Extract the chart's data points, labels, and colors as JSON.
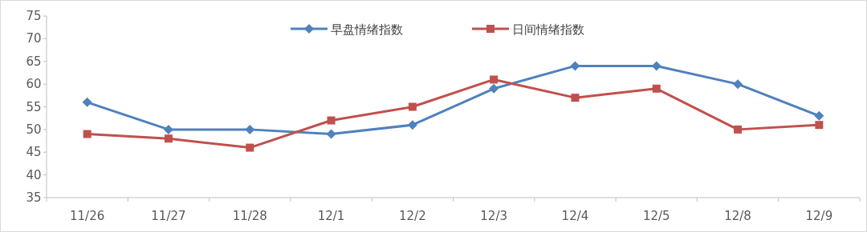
{
  "chart_data": {
    "type": "line",
    "categories": [
      "11/26",
      "11/27",
      "11/28",
      "12/1",
      "12/2",
      "12/3",
      "12/4",
      "12/5",
      "12/8",
      "12/9"
    ],
    "series": [
      {
        "name": "早盘情绪指数",
        "color": "#4f81bd",
        "marker": "diamond",
        "values": [
          56,
          50,
          50,
          49,
          51,
          59,
          64,
          64,
          60,
          53
        ]
      },
      {
        "name": "日间情绪指数",
        "color": "#c0504d",
        "marker": "square",
        "values": [
          49,
          48,
          46,
          52,
          55,
          61,
          57,
          59,
          50,
          51
        ]
      }
    ],
    "ylim": [
      35,
      75
    ],
    "yticks": [
      35,
      40,
      45,
      50,
      55,
      60,
      65,
      70,
      75
    ],
    "grid": false,
    "legend": "top",
    "line_style": "solid"
  }
}
